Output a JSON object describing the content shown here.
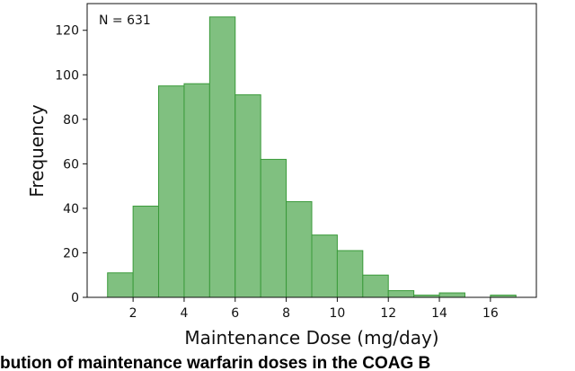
{
  "chart_data": {
    "type": "bar",
    "title": "",
    "xlabel": "Maintenance  Dose (mg/day)",
    "ylabel": "Frequency",
    "annotation": "N = 631",
    "caption": "bution  of maintenance warfarin doses in the COAG B",
    "bin_edges": [
      1,
      2,
      3,
      4,
      5,
      6,
      7,
      8,
      9,
      10,
      11,
      12,
      13,
      14,
      15,
      16,
      17
    ],
    "values": [
      11,
      41,
      95,
      96,
      126,
      91,
      62,
      43,
      28,
      21,
      10,
      3,
      1,
      2,
      0,
      1
    ],
    "xlim": [
      0.2,
      17.8
    ],
    "ylim": [
      0,
      132
    ],
    "xticks": [
      2,
      4,
      6,
      8,
      10,
      12,
      14,
      16
    ],
    "yticks": [
      0,
      20,
      40,
      60,
      80,
      100,
      120
    ],
    "grid": false,
    "bar_color": "#80c080",
    "edge_color": "#3a9a3a"
  }
}
